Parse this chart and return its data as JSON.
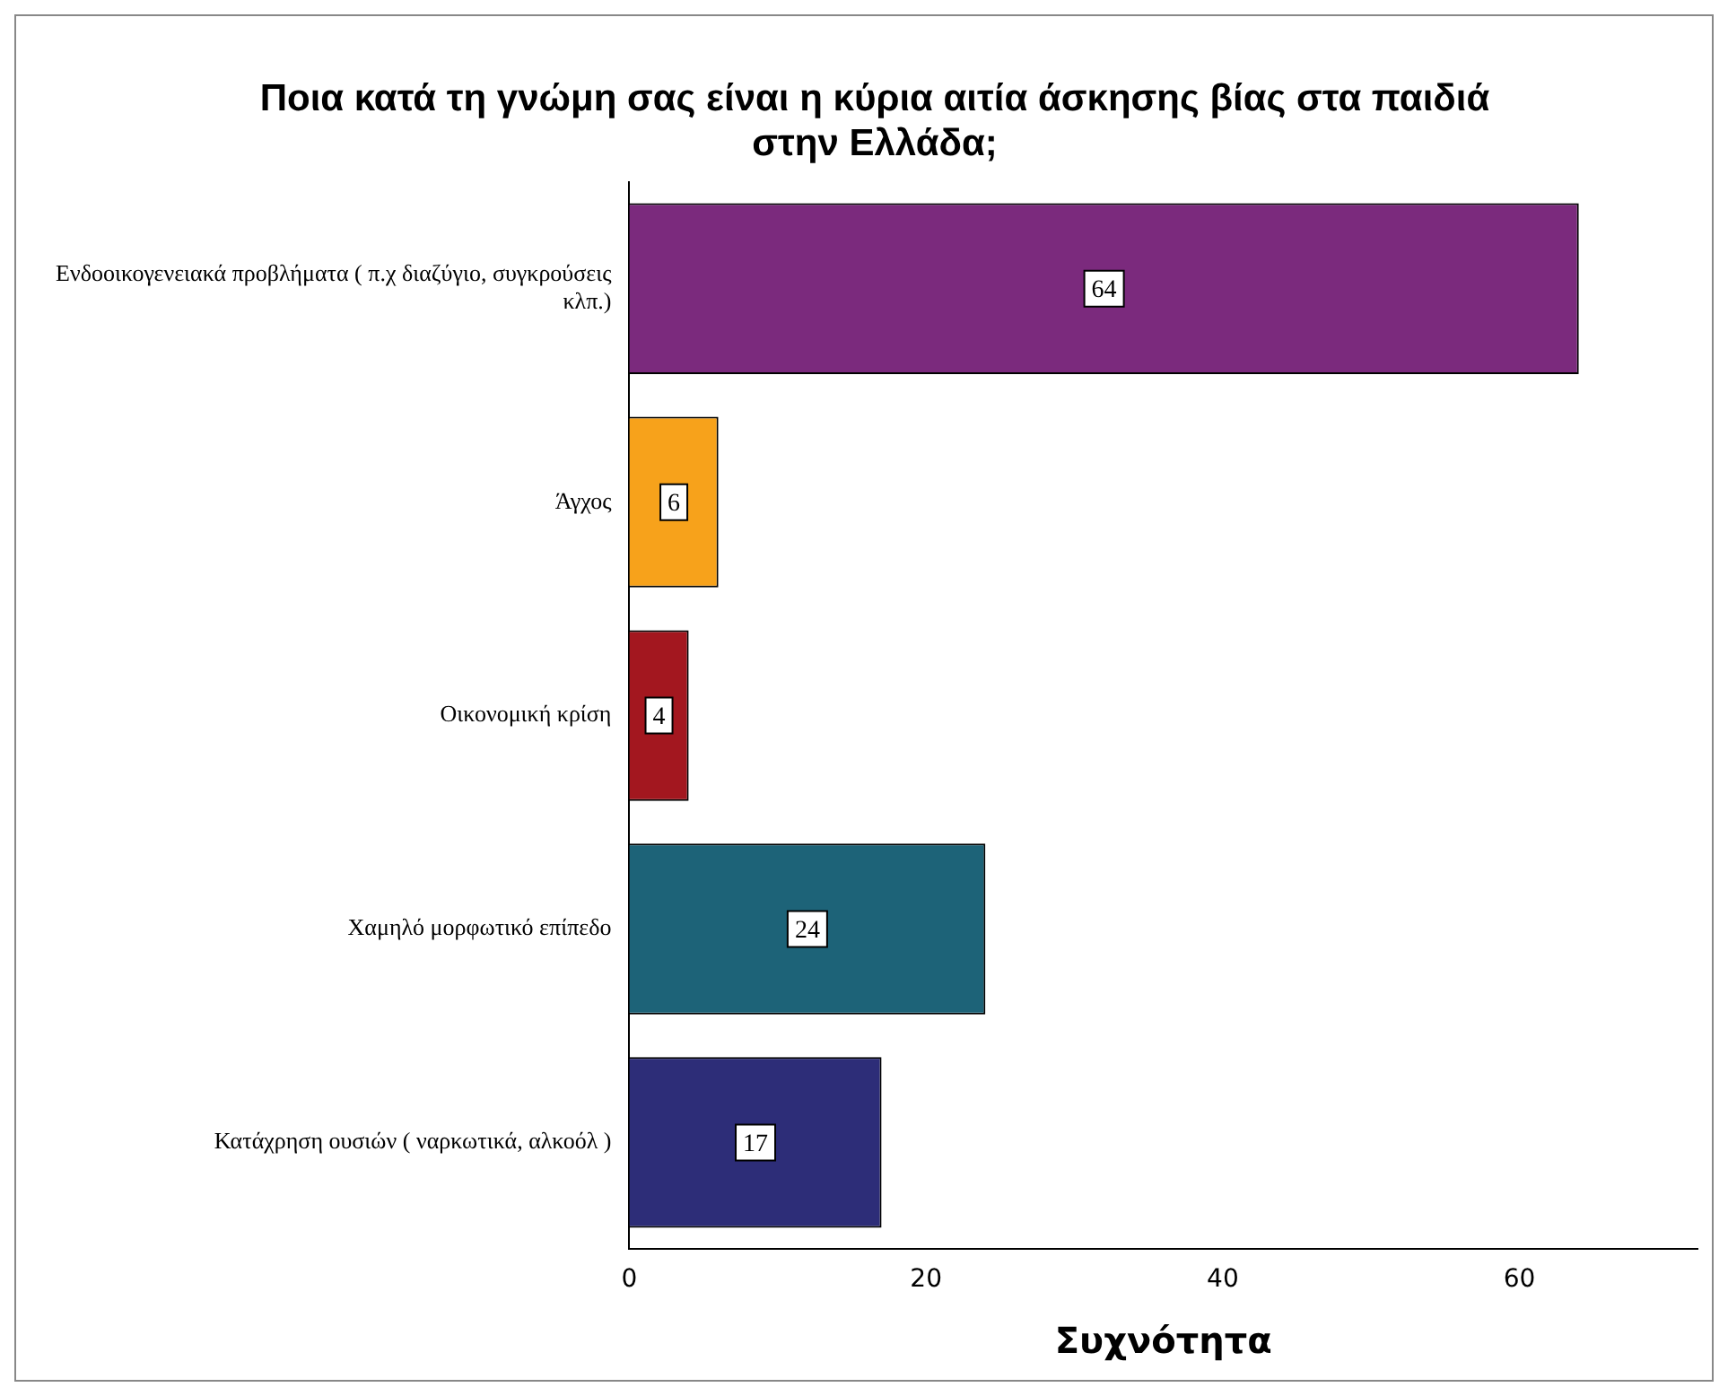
{
  "chart_data": {
    "type": "bar",
    "orientation": "horizontal",
    "title": "Ποια κατά τη γνώμη σας είναι η κύρια αιτία άσκησης βίας στα παιδιά στην Ελλάδα;",
    "xlabel": "Συχνότητα",
    "categories": [
      "Ενδοοικογενειακά προβλήματα ( π.χ διαζύγιο, συγκρούσεις κλπ.)",
      "Άγχος",
      "Οικονομική κρίση",
      "Χαμηλό μορφωτικό επίπεδο",
      "Κατάχρηση ουσιών ( ναρκωτικά, αλκοόλ )"
    ],
    "values": [
      64,
      6,
      4,
      24,
      17
    ],
    "colors": [
      "#7b2a7d",
      "#f7a21b",
      "#a3171f",
      "#1d6378",
      "#2d2d78"
    ],
    "xlim": [
      0,
      72
    ],
    "xticks": [
      0,
      20,
      40,
      60
    ],
    "data_labels": true,
    "grid": false,
    "legend": false
  }
}
